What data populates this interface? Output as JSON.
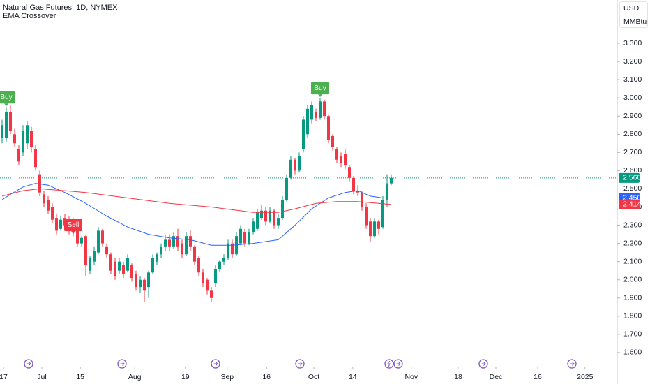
{
  "chart_data": {
    "type": "candlestick",
    "title": "Natural Gas Futures, 1D, NYMEX",
    "subtitle": "EMA Crossover",
    "currency": "USD",
    "unit": "MMBtu",
    "up_color": "#089981",
    "down_color": "#f23645",
    "grid": false,
    "open": [
      2.78,
      2.78,
      2.92,
      2.8,
      2.72,
      2.7,
      2.75,
      2.82,
      2.72,
      2.58,
      2.47,
      2.44,
      2.4,
      2.34,
      2.28,
      2.34,
      2.33,
      2.32,
      2.27,
      2.2,
      2.24,
      2.05,
      2.1,
      2.15,
      2.27,
      2.18,
      2.14,
      2.1,
      2.05,
      2.08,
      2.05,
      2.08,
      2.03,
      1.96,
      2.0,
      1.96,
      2.04,
      2.1,
      2.14,
      2.18,
      2.22,
      2.18,
      2.24,
      2.2,
      2.14,
      2.24,
      2.18,
      2.12,
      2.04,
      2.0,
      1.94,
      1.98,
      2.06,
      2.1,
      2.12,
      2.2,
      2.14,
      2.2,
      2.26,
      2.2,
      2.26,
      2.28,
      2.34,
      2.38,
      2.32,
      2.38,
      2.3,
      2.34,
      2.44,
      2.56,
      2.66,
      2.6,
      2.72,
      2.8,
      2.88,
      2.92,
      2.89,
      2.98,
      2.9,
      2.79,
      2.72,
      2.68,
      2.69,
      2.62,
      2.56,
      2.49,
      2.48,
      2.4,
      2.32,
      2.24,
      2.32,
      2.29,
      2.44,
      2.53
    ],
    "high": [
      2.88,
      2.95,
      2.96,
      2.83,
      2.74,
      2.85,
      2.87,
      2.84,
      2.74,
      2.6,
      2.49,
      2.46,
      2.42,
      2.36,
      2.35,
      2.36,
      2.35,
      2.34,
      2.28,
      2.24,
      2.25,
      2.13,
      2.18,
      2.29,
      2.28,
      2.2,
      2.15,
      2.12,
      2.12,
      2.1,
      2.14,
      2.09,
      2.05,
      2.02,
      2.01,
      2.05,
      2.14,
      2.15,
      2.2,
      2.25,
      2.25,
      2.26,
      2.28,
      2.22,
      2.26,
      2.27,
      2.19,
      2.13,
      2.06,
      2.01,
      1.96,
      2.08,
      2.11,
      2.14,
      2.22,
      2.22,
      2.26,
      2.3,
      2.28,
      2.28,
      2.34,
      2.39,
      2.41,
      2.4,
      2.4,
      2.39,
      2.36,
      2.46,
      2.58,
      2.68,
      2.67,
      2.7,
      2.9,
      2.96,
      2.98,
      2.94,
      3.0,
      2.99,
      2.91,
      2.8,
      2.73,
      2.7,
      2.72,
      2.63,
      2.57,
      2.52,
      2.49,
      2.42,
      2.34,
      2.34,
      2.33,
      2.46,
      2.58,
      2.58
    ],
    "low": [
      2.75,
      2.76,
      2.8,
      2.73,
      2.63,
      2.68,
      2.72,
      2.7,
      2.6,
      2.46,
      2.4,
      2.36,
      2.31,
      2.25,
      2.27,
      2.28,
      2.25,
      2.24,
      2.18,
      2.18,
      2.02,
      2.03,
      2.08,
      2.14,
      2.18,
      2.12,
      2.03,
      2.0,
      2.03,
      2.01,
      2.04,
      1.99,
      1.94,
      1.93,
      1.88,
      1.9,
      2.03,
      2.08,
      2.12,
      2.16,
      2.16,
      2.17,
      2.16,
      2.12,
      2.13,
      2.16,
      2.08,
      2.02,
      1.96,
      1.92,
      1.88,
      1.96,
      2.04,
      2.08,
      2.11,
      2.12,
      2.13,
      2.19,
      2.18,
      2.19,
      2.25,
      2.27,
      2.33,
      2.3,
      2.31,
      2.28,
      2.28,
      2.33,
      2.43,
      2.55,
      2.58,
      2.59,
      2.7,
      2.78,
      2.86,
      2.87,
      2.88,
      2.88,
      2.75,
      2.71,
      2.64,
      2.62,
      2.61,
      2.54,
      2.47,
      2.46,
      2.38,
      2.28,
      2.21,
      2.23,
      2.25,
      2.28,
      2.4,
      2.52
    ],
    "close": [
      2.85,
      2.92,
      2.82,
      2.75,
      2.65,
      2.82,
      2.85,
      2.73,
      2.62,
      2.48,
      2.42,
      2.38,
      2.33,
      2.27,
      2.33,
      2.3,
      2.27,
      2.26,
      2.2,
      2.23,
      2.08,
      2.12,
      2.16,
      2.27,
      2.2,
      2.14,
      2.05,
      2.02,
      2.1,
      2.03,
      2.12,
      2.01,
      1.96,
      2.0,
      1.94,
      2.04,
      2.12,
      2.14,
      2.18,
      2.22,
      2.18,
      2.24,
      2.18,
      2.14,
      2.24,
      2.18,
      2.1,
      2.04,
      1.98,
      1.94,
      1.9,
      2.06,
      2.1,
      2.12,
      2.2,
      2.14,
      2.24,
      2.28,
      2.2,
      2.26,
      2.32,
      2.37,
      2.38,
      2.32,
      2.38,
      2.3,
      2.34,
      2.44,
      2.56,
      2.66,
      2.6,
      2.68,
      2.88,
      2.94,
      2.96,
      2.89,
      2.98,
      2.9,
      2.77,
      2.73,
      2.66,
      2.64,
      2.63,
      2.56,
      2.49,
      2.48,
      2.4,
      2.3,
      2.24,
      2.32,
      2.28,
      2.44,
      2.53,
      2.56
    ],
    "ema_lines": [
      {
        "color": "#2962ff",
        "x": [
          0,
          2,
          5,
          8,
          11,
          15,
          20,
          25,
          30,
          35,
          40,
          45,
          50,
          55,
          60,
          66,
          70,
          74,
          78,
          82,
          85,
          88,
          91,
          93
        ],
        "values": [
          2.44,
          2.47,
          2.51,
          2.53,
          2.52,
          2.48,
          2.42,
          2.35,
          2.29,
          2.25,
          2.23,
          2.22,
          2.19,
          2.19,
          2.2,
          2.22,
          2.3,
          2.39,
          2.45,
          2.48,
          2.49,
          2.46,
          2.45,
          2.45
        ]
      },
      {
        "color": "#f23645",
        "x": [
          0,
          5,
          9,
          15,
          20,
          30,
          40,
          50,
          60,
          66,
          70,
          75,
          80,
          85,
          90,
          93
        ],
        "values": [
          2.46,
          2.49,
          2.5,
          2.49,
          2.48,
          2.45,
          2.42,
          2.4,
          2.37,
          2.37,
          2.39,
          2.42,
          2.43,
          2.43,
          2.42,
          2.414
        ]
      }
    ],
    "signals": [
      {
        "x": 1,
        "label": "Buy",
        "color": "#4caf50"
      },
      {
        "x": 17,
        "label": "Sell",
        "color": "#f23645"
      },
      {
        "x": 76,
        "label": "Buy",
        "color": "#4caf50"
      }
    ],
    "price_labels": [
      {
        "value": 2.56,
        "label": "2.560",
        "color": "#089981"
      },
      {
        "value": 2.45,
        "label": "2.450",
        "color": "#2962ff"
      },
      {
        "value": 2.414,
        "label": "2.414",
        "color": "#f23645"
      }
    ],
    "xlim": [
      -0.5,
      147
    ],
    "xticks": [
      {
        "value": 0.33,
        "label": "17"
      },
      {
        "value": 9.5,
        "label": "Jul"
      },
      {
        "value": 18.7,
        "label": "15"
      },
      {
        "value": 31.7,
        "label": "Aug"
      },
      {
        "value": 43.8,
        "label": "19"
      },
      {
        "value": 53.8,
        "label": "Sep"
      },
      {
        "value": 63.2,
        "label": "16"
      },
      {
        "value": 74.5,
        "label": "Oct"
      },
      {
        "value": 83.8,
        "label": "14"
      },
      {
        "value": 97.8,
        "label": "Nov"
      },
      {
        "value": 109,
        "label": "18"
      },
      {
        "value": 118,
        "label": "Dec"
      },
      {
        "value": 128,
        "label": "16"
      },
      {
        "value": 139.3,
        "label": "2025"
      }
    ],
    "ylim": [
      1.523,
      3.538
    ],
    "yticks": [
      {
        "value": 1.6,
        "label": "1.600"
      },
      {
        "value": 1.7,
        "label": "1.700"
      },
      {
        "value": 1.8,
        "label": "1.800"
      },
      {
        "value": 1.9,
        "label": "1.900"
      },
      {
        "value": 2.0,
        "label": "2.000"
      },
      {
        "value": 2.1,
        "label": "2.100"
      },
      {
        "value": 2.2,
        "label": "2.200"
      },
      {
        "value": 2.3,
        "label": "2.300"
      },
      {
        "value": 2.4,
        "label": "2.400"
      },
      {
        "value": 2.5,
        "label": "2.500"
      },
      {
        "value": 2.6,
        "label": "2.600"
      },
      {
        "value": 2.7,
        "label": "2.700"
      },
      {
        "value": 2.8,
        "label": "2.800"
      },
      {
        "value": 2.9,
        "label": "2.900"
      },
      {
        "value": 3.0,
        "label": "3.000"
      },
      {
        "value": 3.1,
        "label": "3.100"
      },
      {
        "value": 3.2,
        "label": "3.200"
      },
      {
        "value": 3.3,
        "label": "3.300"
      }
    ]
  }
}
